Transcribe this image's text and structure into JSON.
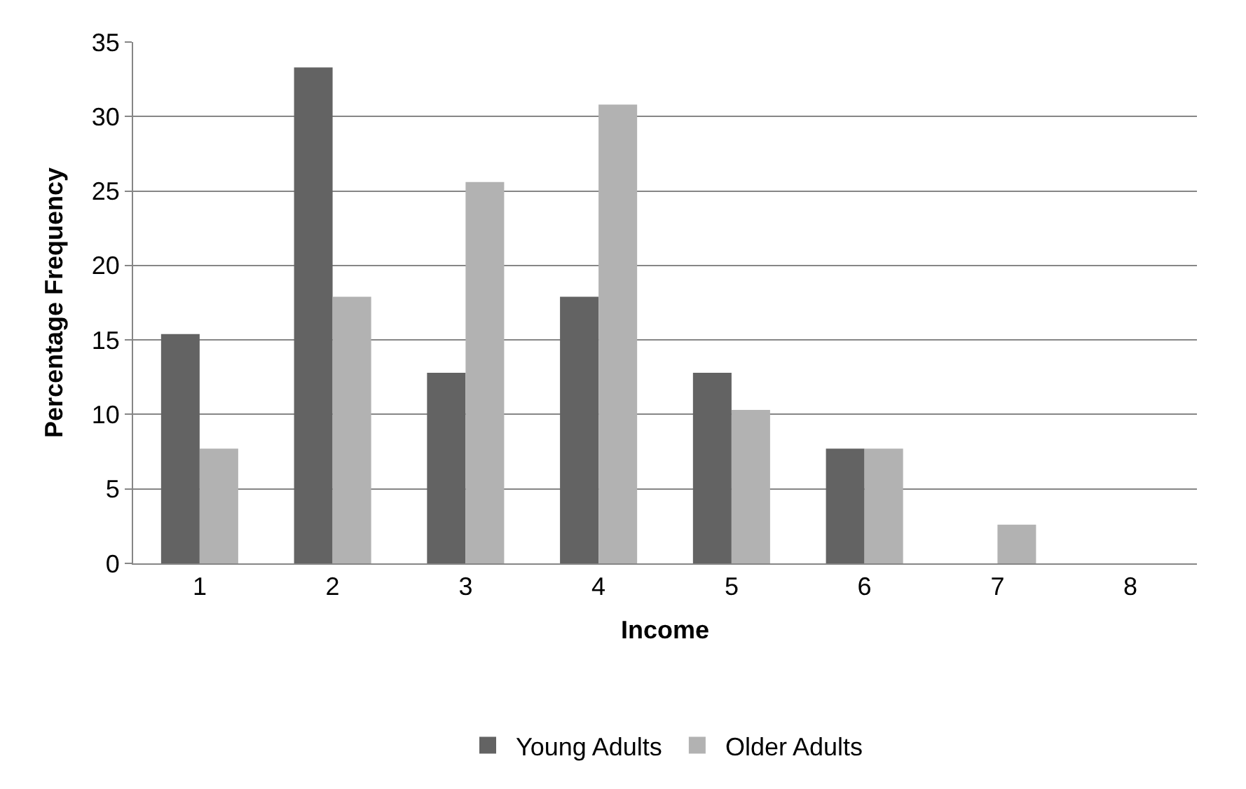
{
  "chart_data": {
    "type": "bar",
    "xlabel": "Income",
    "ylabel": "Percentage Frequency",
    "categories": [
      "1",
      "2",
      "3",
      "4",
      "5",
      "6",
      "7",
      "8"
    ],
    "series": [
      {
        "name": "Young Adults",
        "color": "#636363",
        "values": [
          15.4,
          33.3,
          12.8,
          17.9,
          12.8,
          7.7,
          0,
          0
        ]
      },
      {
        "name": "Older Adults",
        "color": "#b2b2b2",
        "values": [
          7.7,
          17.9,
          25.6,
          30.8,
          10.3,
          7.7,
          2.6,
          0
        ]
      }
    ],
    "ylim": [
      0,
      35
    ],
    "yticks": [
      0,
      5,
      10,
      15,
      20,
      25,
      30,
      35
    ],
    "grid": "y",
    "legend": "bottom"
  }
}
